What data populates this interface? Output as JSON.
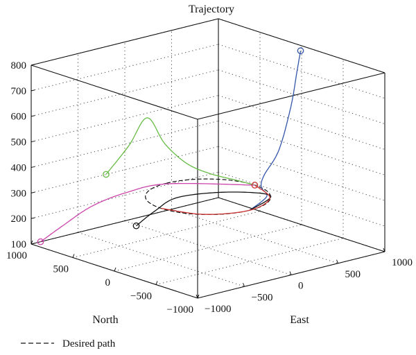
{
  "chart_data": {
    "type": "line",
    "title": "Trajectory",
    "xlabel": "North",
    "ylabel": "East",
    "zlabel": "",
    "xlim": [
      -1000,
      1000
    ],
    "ylim": [
      -1000,
      1000
    ],
    "zlim": [
      100,
      800
    ],
    "x_ticks": [
      "1000",
      "500",
      "0",
      "−500",
      "−1000"
    ],
    "y_ticks": [
      "−1000",
      "−500",
      "0",
      "500",
      "1000"
    ],
    "z_ticks": [
      "100",
      "200",
      "300",
      "400",
      "500",
      "600",
      "700",
      "800"
    ],
    "grid": true,
    "legend": {
      "placement": "bottom-left",
      "entries": [
        {
          "label": "Desired path",
          "style": "dashed",
          "color": "#000000"
        }
      ]
    },
    "desired_path": {
      "shape": "circle",
      "center_north": 0,
      "center_east": 0,
      "radius": 500,
      "altitude": 300,
      "color": "#000000"
    },
    "series": [
      {
        "color": "#3355aa",
        "start": [
          -100,
          900,
          800
        ],
        "points": [
          [
            -100,
            900,
            800
          ],
          [
            -80,
            880,
            720
          ],
          [
            -60,
            830,
            580
          ],
          [
            -40,
            720,
            420
          ],
          [
            0,
            600,
            330
          ],
          [
            -100,
            480,
            305
          ],
          [
            -300,
            360,
            300
          ],
          [
            -500,
            0,
            300
          ]
        ]
      },
      {
        "color": "#66bb44",
        "start": [
          1000,
          -200,
          300
        ],
        "points": [
          [
            1000,
            -200,
            300
          ],
          [
            950,
            0,
            400
          ],
          [
            900,
            150,
            500
          ],
          [
            800,
            250,
            400
          ],
          [
            650,
            350,
            330
          ],
          [
            450,
            420,
            305
          ],
          [
            200,
            480,
            300
          ],
          [
            0,
            500,
            300
          ]
        ]
      },
      {
        "color": "#cc44aa",
        "start": [
          1000,
          -900,
          100
        ],
        "points": [
          [
            1000,
            -900,
            100
          ],
          [
            900,
            -750,
            160
          ],
          [
            780,
            -550,
            230
          ],
          [
            620,
            -320,
            280
          ],
          [
            480,
            0,
            300
          ],
          [
            0,
            500,
            300
          ]
        ]
      },
      {
        "color": "#111111",
        "start": [
          300,
          -500,
          200
        ],
        "points": [
          [
            300,
            -500,
            200
          ],
          [
            300,
            -300,
            240
          ],
          [
            250,
            -100,
            280
          ],
          [
            0,
            200,
            300
          ],
          [
            -300,
            400,
            300
          ],
          [
            -500,
            0,
            300
          ]
        ]
      },
      {
        "color": "#cc3333",
        "start": [
          0,
          500,
          300
        ],
        "points": [
          [
            0,
            500,
            300
          ],
          [
            -350,
            350,
            300
          ],
          [
            -500,
            0,
            300
          ],
          [
            -350,
            -350,
            300
          ],
          [
            0,
            -500,
            300
          ]
        ]
      }
    ]
  }
}
